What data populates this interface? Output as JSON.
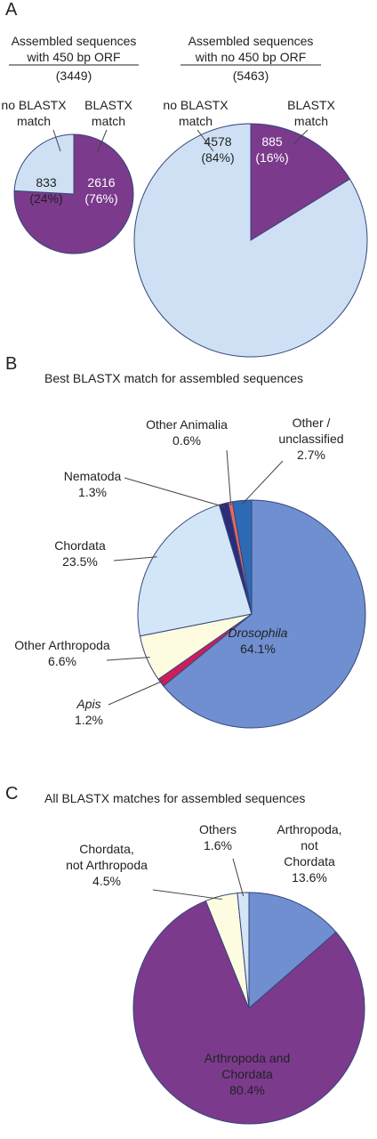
{
  "chart_data": [
    {
      "type": "pie",
      "panel": "A",
      "title": "Assembled sequences\nwith 450 bp ORF",
      "subtitle": "(3449)",
      "categories": [
        "BLASTX\nmatch",
        "no BLASTX\nmatch"
      ],
      "values": [
        2616,
        833
      ],
      "percent_labels": [
        "(76%)",
        "(24%)"
      ],
      "colors": [
        "#7b3a8c",
        "#cfe0f4"
      ]
    },
    {
      "type": "pie",
      "title": "Assembled sequences\nwith no 450 bp ORF",
      "subtitle": "(5463)",
      "categories": [
        "BLASTX\nmatch",
        "no BLASTX\nmatch"
      ],
      "values": [
        885,
        4578
      ],
      "percent_labels": [
        "(16%)",
        "(84%)"
      ],
      "colors": [
        "#7b3a8c",
        "#cfe0f4"
      ]
    },
    {
      "type": "pie",
      "panel": "B",
      "title": "Best BLASTX match for assembled sequences",
      "categories": [
        "Drosophila",
        "Apis",
        "Other Arthropoda",
        "Chordata",
        "Nematoda",
        "Other Animalia",
        "Other /\nunclassified"
      ],
      "values": [
        64.1,
        1.2,
        6.6,
        23.5,
        1.3,
        0.6,
        2.7
      ],
      "value_labels": [
        "64.1%",
        "1.2%",
        "6.6%",
        "23.5%",
        "1.3%",
        "0.6%",
        "2.7%"
      ],
      "colors": [
        "#6f8fd0",
        "#cc1f5a",
        "#fdfbe0",
        "#d3e6f7",
        "#2b2d7a",
        "#f0665a",
        "#2d6ab5"
      ]
    },
    {
      "type": "pie",
      "panel": "C",
      "title": "All BLASTX matches for assembled sequences",
      "categories": [
        "Arthropoda,\nnot Chordata",
        "Arthropoda and\nChordata",
        "Chordata,\nnot Arthropoda",
        "Others"
      ],
      "values": [
        13.6,
        80.4,
        4.5,
        1.6
      ],
      "value_labels": [
        "13.6%",
        "80.4%",
        "4.5%",
        "1.6%"
      ],
      "colors": [
        "#6f8fd0",
        "#7b3a8c",
        "#fdfbe0",
        "#d3e6f7"
      ]
    }
  ]
}
